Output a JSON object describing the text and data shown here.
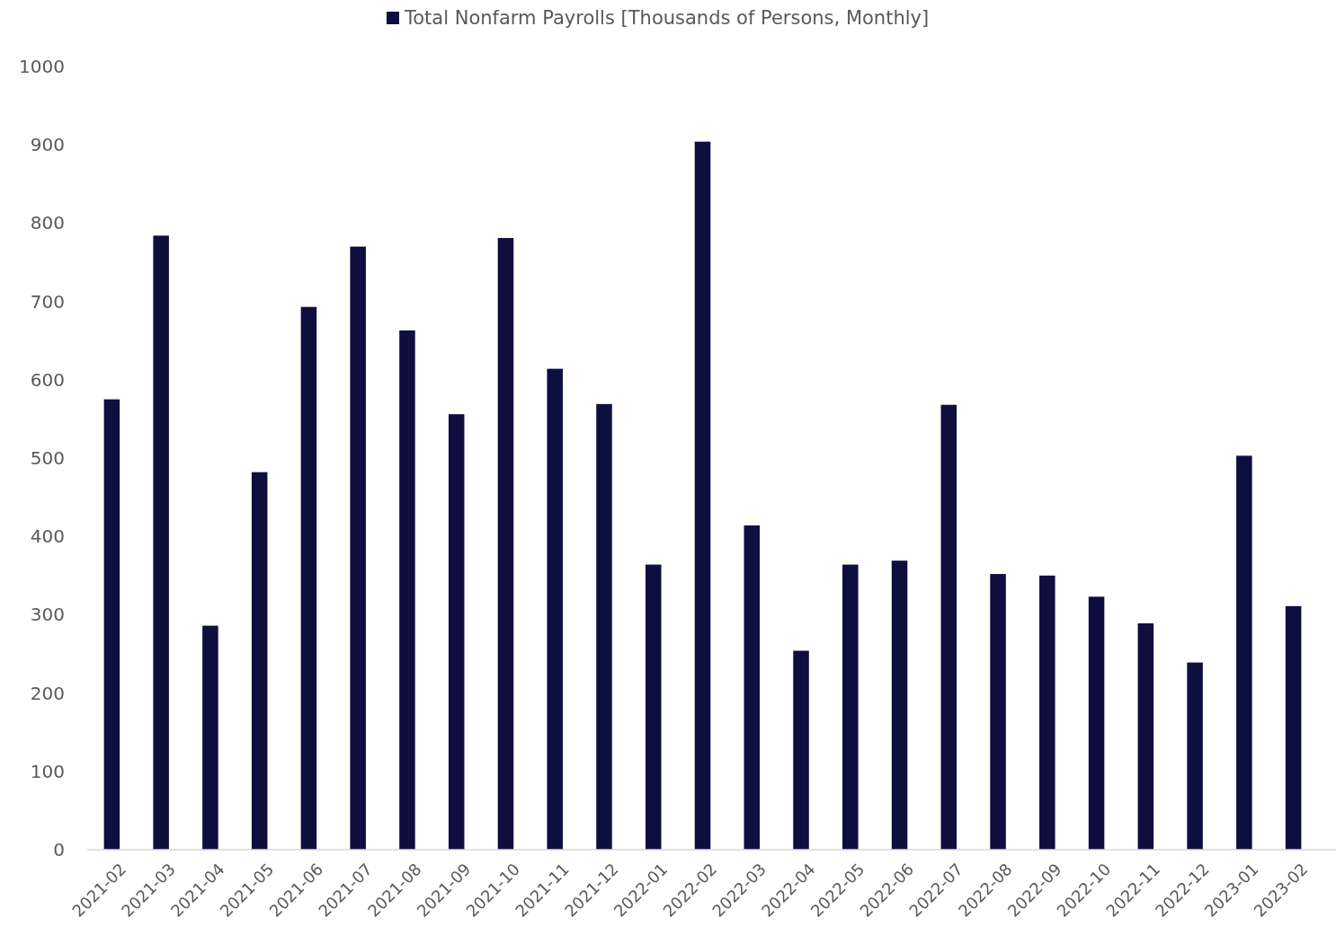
{
  "chart_data": {
    "type": "bar",
    "categories": [
      "2021-02",
      "2021-03",
      "2021-04",
      "2021-05",
      "2021-06",
      "2021-07",
      "2021-08",
      "2021-09",
      "2021-10",
      "2021-11",
      "2021-12",
      "2022-01",
      "2022-02",
      "2022-03",
      "2022-04",
      "2022-05",
      "2022-06",
      "2022-07",
      "2022-08",
      "2022-09",
      "2022-10",
      "2022-11",
      "2022-12",
      "2023-01",
      "2023-02"
    ],
    "series": [
      {
        "name": "Total Nonfarm Payrolls [Thousands of Persons, Monthly]",
        "color": "#0e0e3f",
        "values": [
          575,
          784,
          286,
          482,
          693,
          770,
          663,
          556,
          781,
          614,
          569,
          364,
          904,
          414,
          254,
          364,
          369,
          568,
          352,
          350,
          323,
          289,
          239,
          503,
          311
        ]
      }
    ],
    "ylim": [
      0,
      1000
    ],
    "yticks": [
      0,
      100,
      200,
      300,
      400,
      500,
      600,
      700,
      800,
      900,
      1000
    ],
    "grid": false,
    "legend": "top"
  }
}
